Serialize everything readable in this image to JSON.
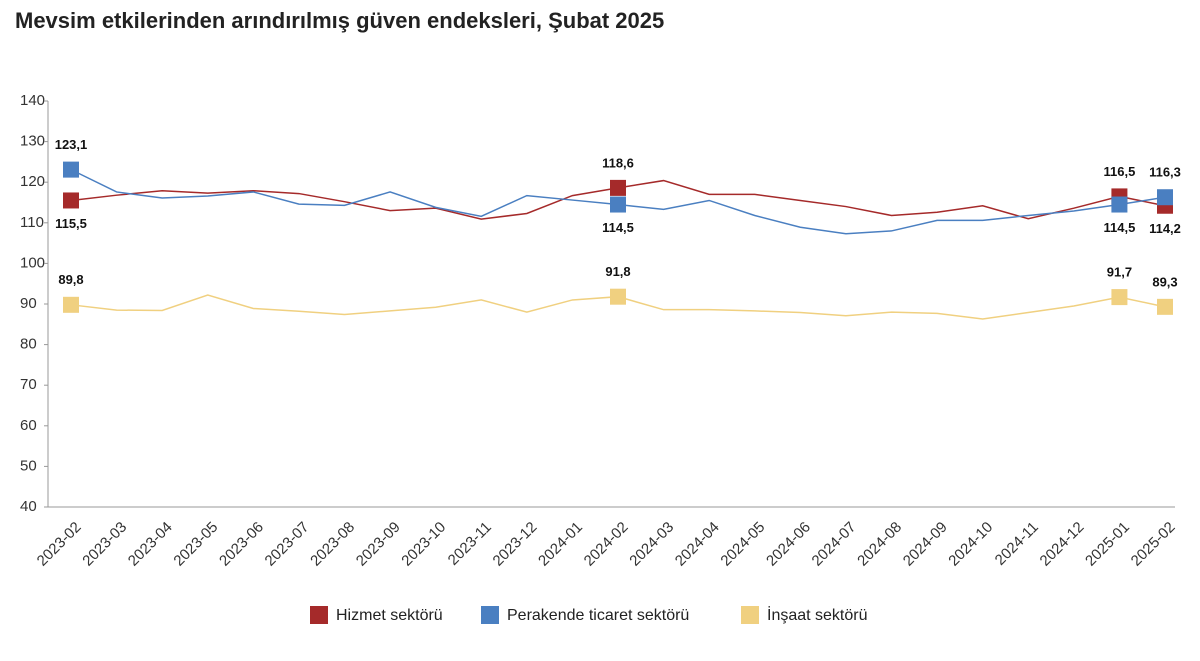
{
  "chart_data": {
    "type": "line",
    "title": "Mevsim etkilerinden arındırılmış güven endeksleri, Şubat 2025",
    "categories": [
      "2023-02",
      "2023-03",
      "2023-04",
      "2023-05",
      "2023-06",
      "2023-07",
      "2023-08",
      "2023-09",
      "2023-10",
      "2023-11",
      "2023-12",
      "2024-01",
      "2024-02",
      "2024-03",
      "2024-04",
      "2024-05",
      "2024-06",
      "2024-07",
      "2024-08",
      "2024-09",
      "2024-10",
      "2024-11",
      "2024-12",
      "2025-01",
      "2025-02"
    ],
    "series": [
      {
        "name": "Hizmet sektörü",
        "color": "#a52a2a",
        "values": [
          115.5,
          116.8,
          117.9,
          117.3,
          117.9,
          117.2,
          115.2,
          113.0,
          113.6,
          110.9,
          112.3,
          116.7,
          118.6,
          120.4,
          117.0,
          117.0,
          115.5,
          114.0,
          111.8,
          112.6,
          114.2,
          111.0,
          113.6,
          116.5,
          114.2
        ],
        "value_labels": [
          "115,5",
          null,
          null,
          null,
          null,
          null,
          null,
          null,
          null,
          null,
          null,
          null,
          "118,6",
          null,
          null,
          null,
          null,
          null,
          null,
          null,
          null,
          null,
          null,
          "116,5",
          "114,2"
        ]
      },
      {
        "name": "Perakende ticaret sektörü",
        "color": "#4a7fc1",
        "values": [
          123.1,
          117.6,
          116.1,
          116.6,
          117.6,
          114.6,
          114.3,
          117.6,
          113.8,
          111.6,
          116.7,
          115.6,
          114.5,
          113.3,
          115.5,
          111.8,
          108.9,
          107.3,
          108.0,
          110.6,
          110.6,
          111.8,
          112.9,
          114.5,
          116.3
        ],
        "value_labels": [
          "123,1",
          null,
          null,
          null,
          null,
          null,
          null,
          null,
          null,
          null,
          null,
          null,
          "114,5",
          null,
          null,
          null,
          null,
          null,
          null,
          null,
          null,
          null,
          null,
          "114,5",
          "116,3"
        ]
      },
      {
        "name": "İnşaat sektörü",
        "color": "#f0d080",
        "values": [
          89.8,
          88.5,
          88.4,
          92.2,
          88.9,
          88.2,
          87.4,
          88.3,
          89.2,
          91.0,
          88.0,
          91.0,
          91.8,
          88.6,
          88.6,
          88.3,
          87.9,
          87.1,
          88.0,
          87.7,
          86.3,
          87.9,
          89.5,
          91.7,
          89.3
        ],
        "value_labels": [
          "89,8",
          null,
          null,
          null,
          null,
          null,
          null,
          null,
          null,
          null,
          null,
          null,
          "91,8",
          null,
          null,
          null,
          null,
          null,
          null,
          null,
          null,
          null,
          null,
          "91,7",
          "89,3"
        ]
      }
    ],
    "ylim": [
      40,
      140
    ],
    "yticks": [
      40,
      50,
      60,
      70,
      80,
      90,
      100,
      110,
      120,
      130,
      140
    ],
    "grid": false,
    "legend": "bottom"
  }
}
